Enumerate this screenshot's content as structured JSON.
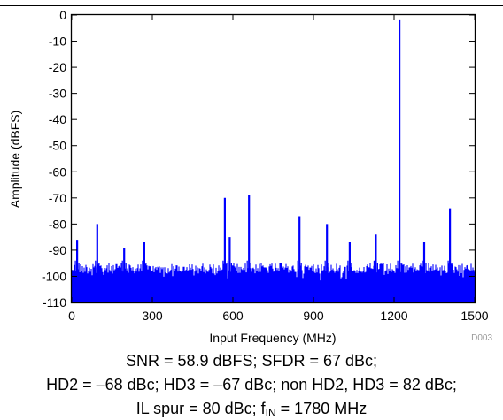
{
  "chart_data": {
    "type": "line",
    "title": "",
    "xlabel": "Input Frequency (MHz)",
    "ylabel": "Amplitude (dBFS)",
    "xlim": [
      0,
      1500
    ],
    "ylim": [
      -110,
      0
    ],
    "x_ticks": [
      "0",
      "300",
      "600",
      "900",
      "1200",
      "1500"
    ],
    "y_ticks": [
      "0",
      "-10",
      "-20",
      "-30",
      "-40",
      "-50",
      "-60",
      "-70",
      "-80",
      "-90",
      "-100",
      "-110"
    ],
    "figure_id": "D003",
    "grid": false,
    "color": "#0000ff",
    "noise_floor_dbfs": -98,
    "peaks": [
      {
        "x": 20,
        "y": -86
      },
      {
        "x": 95,
        "y": -80
      },
      {
        "x": 195,
        "y": -89
      },
      {
        "x": 270,
        "y": -87
      },
      {
        "x": 570,
        "y": -70
      },
      {
        "x": 588,
        "y": -85
      },
      {
        "x": 660,
        "y": -69
      },
      {
        "x": 848,
        "y": -77
      },
      {
        "x": 950,
        "y": -80
      },
      {
        "x": 1035,
        "y": -87
      },
      {
        "x": 1132,
        "y": -84
      },
      {
        "x": 1220,
        "y": -2
      },
      {
        "x": 1312,
        "y": -87
      },
      {
        "x": 1408,
        "y": -74
      }
    ]
  },
  "caption": {
    "line1": "SNR = 58.9 dBFS; SFDR = 67 dBc;",
    "line2": "HD2 = –68 dBc; HD3 = –67 dBc; non HD2, HD3 = 82 dBc;",
    "line3_prefix": "IL spur = 80 dBc; f",
    "line3_sub": "IN",
    "line3_suffix": " = 1780 MHz"
  }
}
